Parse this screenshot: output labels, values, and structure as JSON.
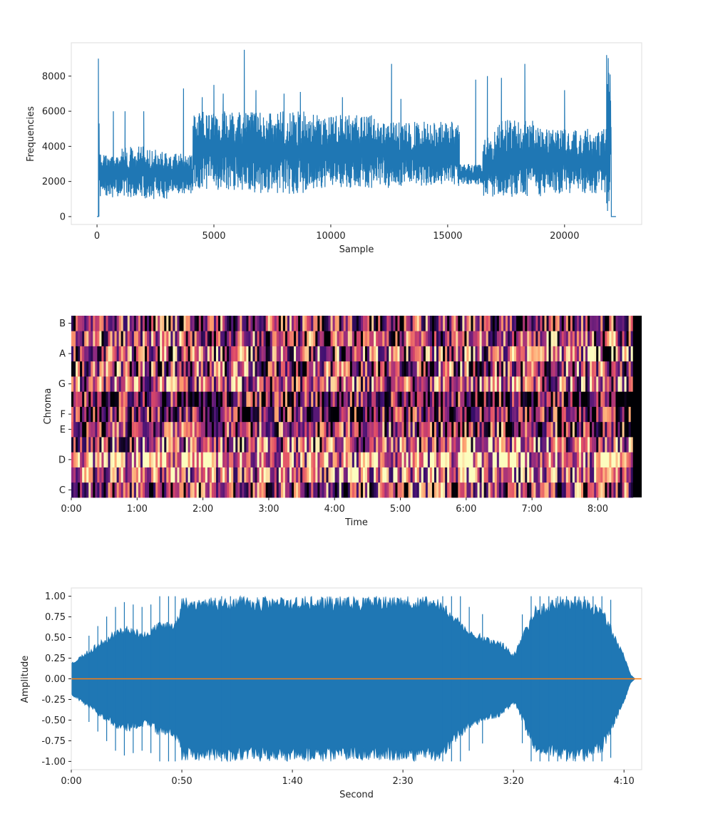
{
  "colors": {
    "series": "#1f77b4",
    "overlay": "#ff7f0e",
    "frame": "#dddddd",
    "text": "#222222"
  },
  "chart_data": [
    {
      "type": "line",
      "xlabel": "Sample",
      "ylabel": "Frequencies",
      "xlim": [
        -1100,
        23300
      ],
      "ylim": [
        -450,
        9900
      ],
      "xticks": [
        0,
        5000,
        10000,
        15000,
        20000
      ],
      "yticks": [
        0,
        2000,
        4000,
        6000,
        8000
      ],
      "grid": false,
      "series": [
        {
          "style": "dense-envelope",
          "segments": [
            {
              "x": [
                0,
                80
              ],
              "lower": 0,
              "upper": 0
            },
            {
              "x": [
                80,
                100
              ],
              "lower": 0,
              "upper": 9000
            },
            {
              "x": [
                100,
                1000
              ],
              "lower": 1100,
              "upper": 3600
            },
            {
              "x": [
                1000,
                2000
              ],
              "lower": 1100,
              "upper": 4000
            },
            {
              "x": [
                2000,
                3000
              ],
              "lower": 1000,
              "upper": 3800
            },
            {
              "x": [
                3000,
                4100
              ],
              "lower": 1300,
              "upper": 3600
            },
            {
              "x": [
                4100,
                6500
              ],
              "lower": 1500,
              "upper": 6000
            },
            {
              "x": [
                6500,
                9000
              ],
              "lower": 1300,
              "upper": 6000
            },
            {
              "x": [
                9000,
                12500
              ],
              "lower": 1600,
              "upper": 5800
            },
            {
              "x": [
                12500,
                15500
              ],
              "lower": 1700,
              "upper": 5400
            },
            {
              "x": [
                15500,
                16500
              ],
              "lower": 1800,
              "upper": 3000
            },
            {
              "x": [
                16500,
                17000
              ],
              "lower": 1100,
              "upper": 4500
            },
            {
              "x": [
                17000,
                19000
              ],
              "lower": 1100,
              "upper": 5500
            },
            {
              "x": [
                19000,
                21800
              ],
              "lower": 1300,
              "upper": 5000
            },
            {
              "x": [
                21800,
                22000
              ],
              "lower": 0,
              "upper": 9200
            },
            {
              "x": [
                22000,
                22200
              ],
              "lower": 0,
              "upper": 0
            }
          ],
          "spikes": [
            [
              60,
              9000
            ],
            [
              700,
              6000
            ],
            [
              1200,
              6000
            ],
            [
              2000,
              6000
            ],
            [
              3700,
              7300
            ],
            [
              4500,
              6800
            ],
            [
              5000,
              7500
            ],
            [
              5400,
              7000
            ],
            [
              6300,
              9500
            ],
            [
              6800,
              7200
            ],
            [
              8000,
              7000
            ],
            [
              8700,
              7100
            ],
            [
              10500,
              6800
            ],
            [
              12600,
              8700
            ],
            [
              13000,
              6700
            ],
            [
              16200,
              7800
            ],
            [
              16700,
              8000
            ],
            [
              17300,
              7900
            ],
            [
              18300,
              8700
            ],
            [
              20000,
              7200
            ],
            [
              21800,
              9200
            ]
          ]
        }
      ]
    },
    {
      "type": "heatmap",
      "xlabel": "Time",
      "ylabel": "Chroma",
      "colormap": "magma",
      "rows": [
        "C",
        "C#",
        "D",
        "D#",
        "E",
        "F",
        "F#",
        "G",
        "G#",
        "A",
        "A#",
        "B"
      ],
      "yticklabels": [
        "C",
        "D",
        "E",
        "F",
        "G",
        "A",
        "B"
      ],
      "xticks": [
        "0:00",
        "1:00",
        "2:00",
        "3:00",
        "4:00",
        "5:00",
        "6:00",
        "7:00",
        "8:00"
      ],
      "xlim": [
        0,
        520
      ],
      "data_end": 512,
      "row_mean": [
        0.45,
        0.65,
        0.75,
        0.55,
        0.4,
        0.3,
        0.28,
        0.55,
        0.45,
        0.5,
        0.45,
        0.4
      ]
    },
    {
      "type": "area",
      "xlabel": "Second",
      "ylabel": "Amplitude",
      "xlim": [
        0,
        258
      ],
      "ylim": [
        -1.1,
        1.1
      ],
      "xticks": [
        "0:00",
        "0:50",
        "1:40",
        "2:30",
        "3:20",
        "4:10"
      ],
      "xtick_values": [
        0,
        50,
        100,
        150,
        200,
        250
      ],
      "yticks": [
        "1.00",
        "0.75",
        "0.50",
        "0.25",
        "0.00",
        "-0.25",
        "-0.50",
        "-0.75",
        "-1.00"
      ],
      "ytick_values": [
        1.0,
        0.75,
        0.5,
        0.25,
        0.0,
        -0.25,
        -0.5,
        -0.75,
        -1.0
      ],
      "grid": false,
      "series": [
        {
          "style": "waveform-envelope",
          "x": [
            0,
            5,
            10,
            15,
            20,
            25,
            30,
            35,
            40,
            45,
            49,
            50,
            60,
            70,
            80,
            90,
            100,
            110,
            120,
            130,
            140,
            150,
            160,
            165,
            170,
            180,
            190,
            195,
            200,
            201,
            205,
            210,
            220,
            230,
            240,
            245,
            250,
            253,
            255,
            258
          ],
          "envelope": [
            0.2,
            0.3,
            0.4,
            0.5,
            0.6,
            0.65,
            0.6,
            0.6,
            0.7,
            0.7,
            0.8,
            1.0,
            1.0,
            1.0,
            1.0,
            1.0,
            1.0,
            1.0,
            1.0,
            1.0,
            1.0,
            1.0,
            1.0,
            1.0,
            0.9,
            0.6,
            0.5,
            0.45,
            0.3,
            0.35,
            0.6,
            0.9,
            1.0,
            1.0,
            0.9,
            0.6,
            0.3,
            0.05,
            0.0,
            0.0
          ],
          "spike_x": [
            8,
            12,
            16,
            20,
            24,
            28,
            32,
            36,
            40,
            44,
            47,
            68,
            72,
            168,
            172,
            176,
            180,
            186,
            204,
            208,
            212,
            216,
            220,
            224,
            228,
            232,
            236,
            240,
            244
          ]
        },
        {
          "style": "line",
          "x": [
            0,
            258
          ],
          "y": [
            0,
            0
          ]
        }
      ]
    }
  ]
}
